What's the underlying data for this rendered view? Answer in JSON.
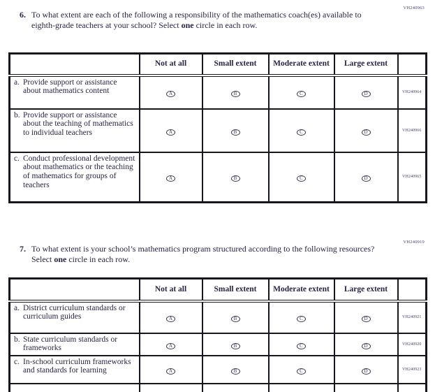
{
  "page": {
    "background": "#ffffff",
    "text_color": "#262542",
    "border_color": "#16161f",
    "code_color": "#45446b"
  },
  "questions": [
    {
      "number": "6.",
      "code": "VH240963",
      "text_before": "To what extent are each of the following a responsibility of the mathematics coach(es) available to eighth-grade teachers at your school? Select ",
      "bold_word": "one",
      "text_after": " circle in each row.",
      "table": {
        "columns": [
          "Not at all",
          "Small extent",
          "Moderate extent",
          "Large extent"
        ],
        "options": [
          "A",
          "B",
          "C",
          "D"
        ],
        "rows": [
          {
            "letter": "a.",
            "label": "Provide support or assistance about mathematics content",
            "code": "VH240964"
          },
          {
            "letter": "b.",
            "label": "Provide support or assistance about the teaching of mathematics to individual teachers",
            "code": "VH240966"
          },
          {
            "letter": "c.",
            "label": "Conduct professional development about mathematics or the teaching of mathematics for groups of teachers",
            "code": "VH240965"
          }
        ]
      }
    },
    {
      "number": "7.",
      "code": "VH240919",
      "text_before": "To what extent is your school’s mathematics program structured according to the following resources? Select ",
      "bold_word": "one",
      "text_after": " circle in each row.",
      "table": {
        "columns": [
          "Not at all",
          "Small extent",
          "Moderate extent",
          "Large extent"
        ],
        "options": [
          "A",
          "B",
          "C",
          "D"
        ],
        "rows": [
          {
            "letter": "a.",
            "label": "District curriculum standards or curriculum guides",
            "code": "VH240921"
          },
          {
            "letter": "b.",
            "label": "State curriculum standards or frameworks",
            "code": "VH240920"
          },
          {
            "letter": "c.",
            "label": "In-school curriculum frameworks and standards for learning",
            "code": "VH240923"
          }
        ]
      }
    }
  ]
}
